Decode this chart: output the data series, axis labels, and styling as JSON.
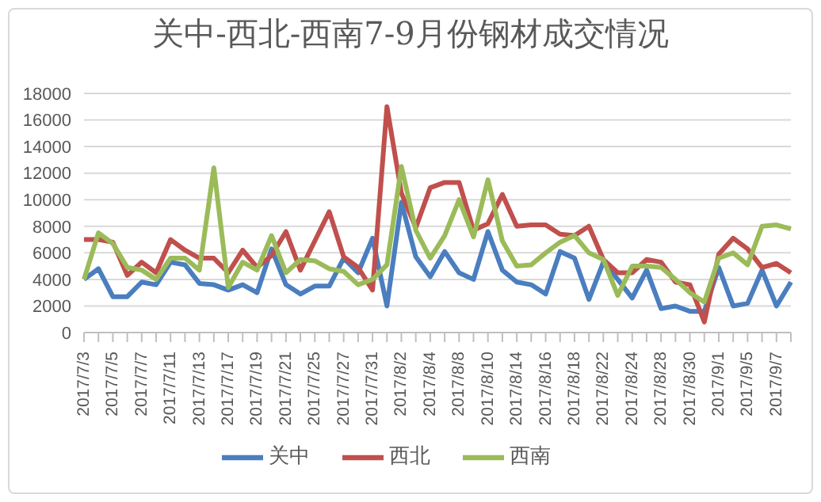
{
  "chart_data": {
    "type": "line",
    "title": "关中-西北-西南7-9月份钢材成交情况",
    "categories": [
      "2017/7/3",
      null,
      "2017/7/5",
      null,
      "2017/7/7",
      null,
      "2017/7/11",
      null,
      "2017/7/13",
      null,
      "2017/7/17",
      null,
      "2017/7/19",
      null,
      "2017/7/21",
      null,
      "2017/7/25",
      null,
      "2017/7/27",
      null,
      "2017/7/31",
      null,
      "2017/8/2",
      null,
      "2017/8/4",
      null,
      "2017/8/8",
      null,
      "2017/8/10",
      null,
      "2017/8/14",
      null,
      "2017/8/16",
      null,
      "2017/8/18",
      null,
      "2017/8/22",
      null,
      "2017/8/24",
      null,
      "2017/8/28",
      null,
      "2017/8/30",
      null,
      "2017/9/1",
      null,
      "2017/9/5",
      null,
      "2017/9/7",
      null
    ],
    "series": [
      {
        "name": "关中",
        "color": "#4a7ebf",
        "values": [
          4000,
          4800,
          2700,
          2700,
          3800,
          3600,
          5300,
          5100,
          3700,
          3600,
          3200,
          3600,
          3000,
          6300,
          3600,
          2900,
          3500,
          3500,
          5600,
          4500,
          7100,
          2000,
          9800,
          5700,
          4200,
          6100,
          4500,
          4000,
          7600,
          4700,
          3800,
          3600,
          2900,
          6100,
          5600,
          2500,
          5300,
          4000,
          2600,
          4700,
          1800,
          2000,
          1600,
          1600,
          4900,
          2000,
          2200,
          4700,
          2000,
          3800
        ]
      },
      {
        "name": "西北",
        "color": "#c0504d",
        "values": [
          7000,
          7000,
          6800,
          4300,
          5300,
          4500,
          7000,
          6200,
          5600,
          5600,
          4500,
          6200,
          4900,
          5800,
          7600,
          4700,
          6900,
          9100,
          5700,
          4900,
          3200,
          17000,
          10500,
          7900,
          10900,
          11300,
          11300,
          7700,
          8200,
          10400,
          8000,
          8100,
          8100,
          7400,
          7300,
          8000,
          5500,
          4500,
          4500,
          5500,
          5300,
          3800,
          3600,
          800,
          5900,
          7100,
          6300,
          4900,
          5200,
          4500
        ]
      },
      {
        "name": "西南",
        "color": "#9bbb59",
        "values": [
          4000,
          7500,
          6700,
          4900,
          4700,
          4000,
          5600,
          5600,
          4700,
          12400,
          3400,
          5300,
          4700,
          7300,
          4500,
          5500,
          5400,
          4800,
          4600,
          3600,
          4000,
          5100,
          12500,
          7700,
          5600,
          7300,
          10000,
          7200,
          11500,
          6900,
          5000,
          5100,
          6000,
          6800,
          7300,
          6000,
          5500,
          2800,
          5000,
          5000,
          4900,
          4000,
          3000,
          2300,
          5600,
          6000,
          5100,
          8000,
          8100,
          7800
        ]
      }
    ],
    "ylim": [
      0,
      18000
    ],
    "yticks": [
      0,
      2000,
      4000,
      6000,
      8000,
      10000,
      12000,
      14000,
      16000,
      18000
    ],
    "grid": "y",
    "legend": "bottom",
    "marker": "none",
    "line_style": "solid"
  }
}
